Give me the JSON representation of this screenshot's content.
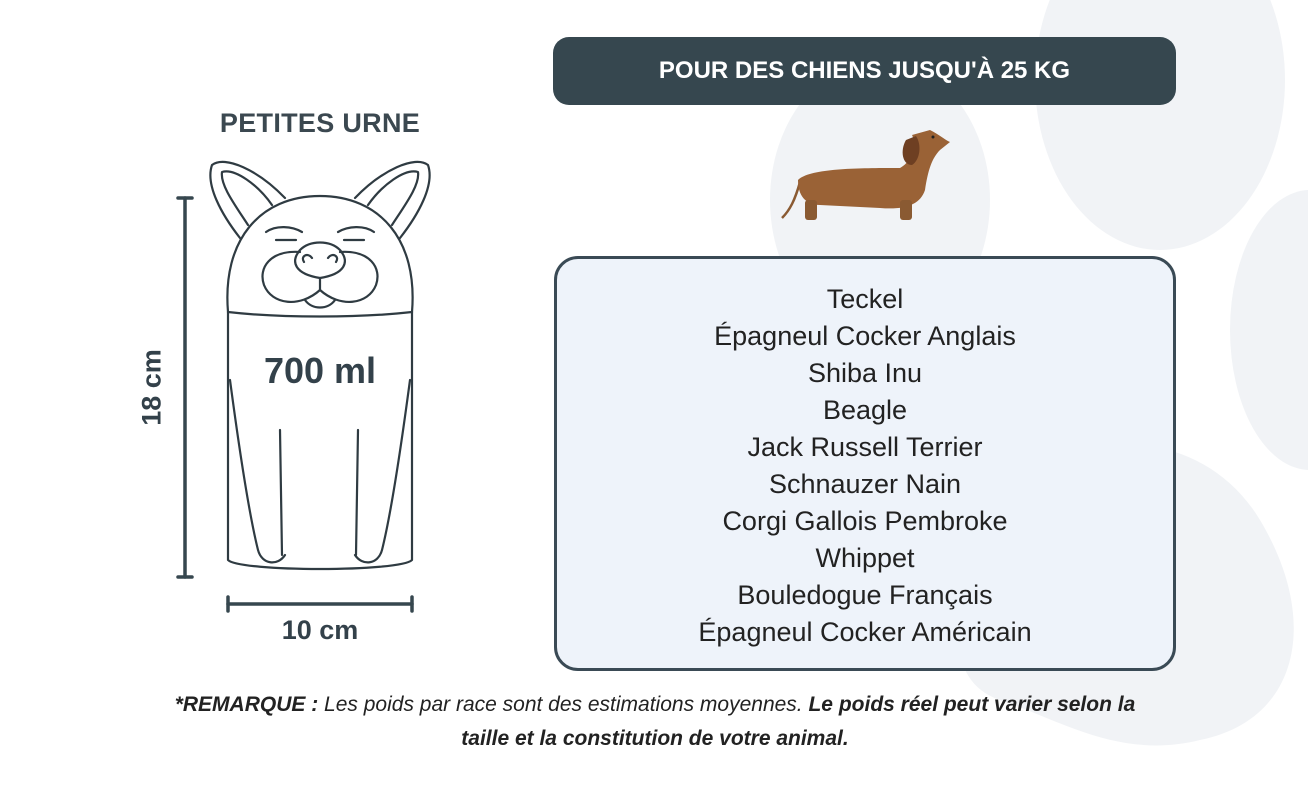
{
  "urn": {
    "title": "PETITES URNE",
    "capacity": "700 ml",
    "height": "18 cm",
    "width": "10 cm"
  },
  "header": {
    "label": "POUR DES CHIENS JUSQU'À 25 KG"
  },
  "breeds": [
    "Teckel",
    "Épagneul Cocker Anglais",
    "Shiba Inu",
    "Beagle",
    "Jack Russell Terrier",
    "Schnauzer Nain",
    "Corgi Gallois Pembroke",
    "Whippet",
    "Bouledogue Français",
    "Épagneul Cocker Américain"
  ],
  "note": {
    "prefix": "*REMARQUE :",
    "body": " Les poids par race sont des estimations moyennes. ",
    "emphasis": "Le poids réel peut varier selon la taille et la constitution de votre animal."
  },
  "colors": {
    "dark": "#36474f",
    "box_bg": "#eef3fa",
    "paw_bg": "#f1f3f6",
    "dog": "#9a6236"
  },
  "icons": {
    "dog_illustration": "dachshund-icon",
    "urn_illustration": "french-bulldog-urn-icon",
    "background": "paw-print-icon"
  }
}
